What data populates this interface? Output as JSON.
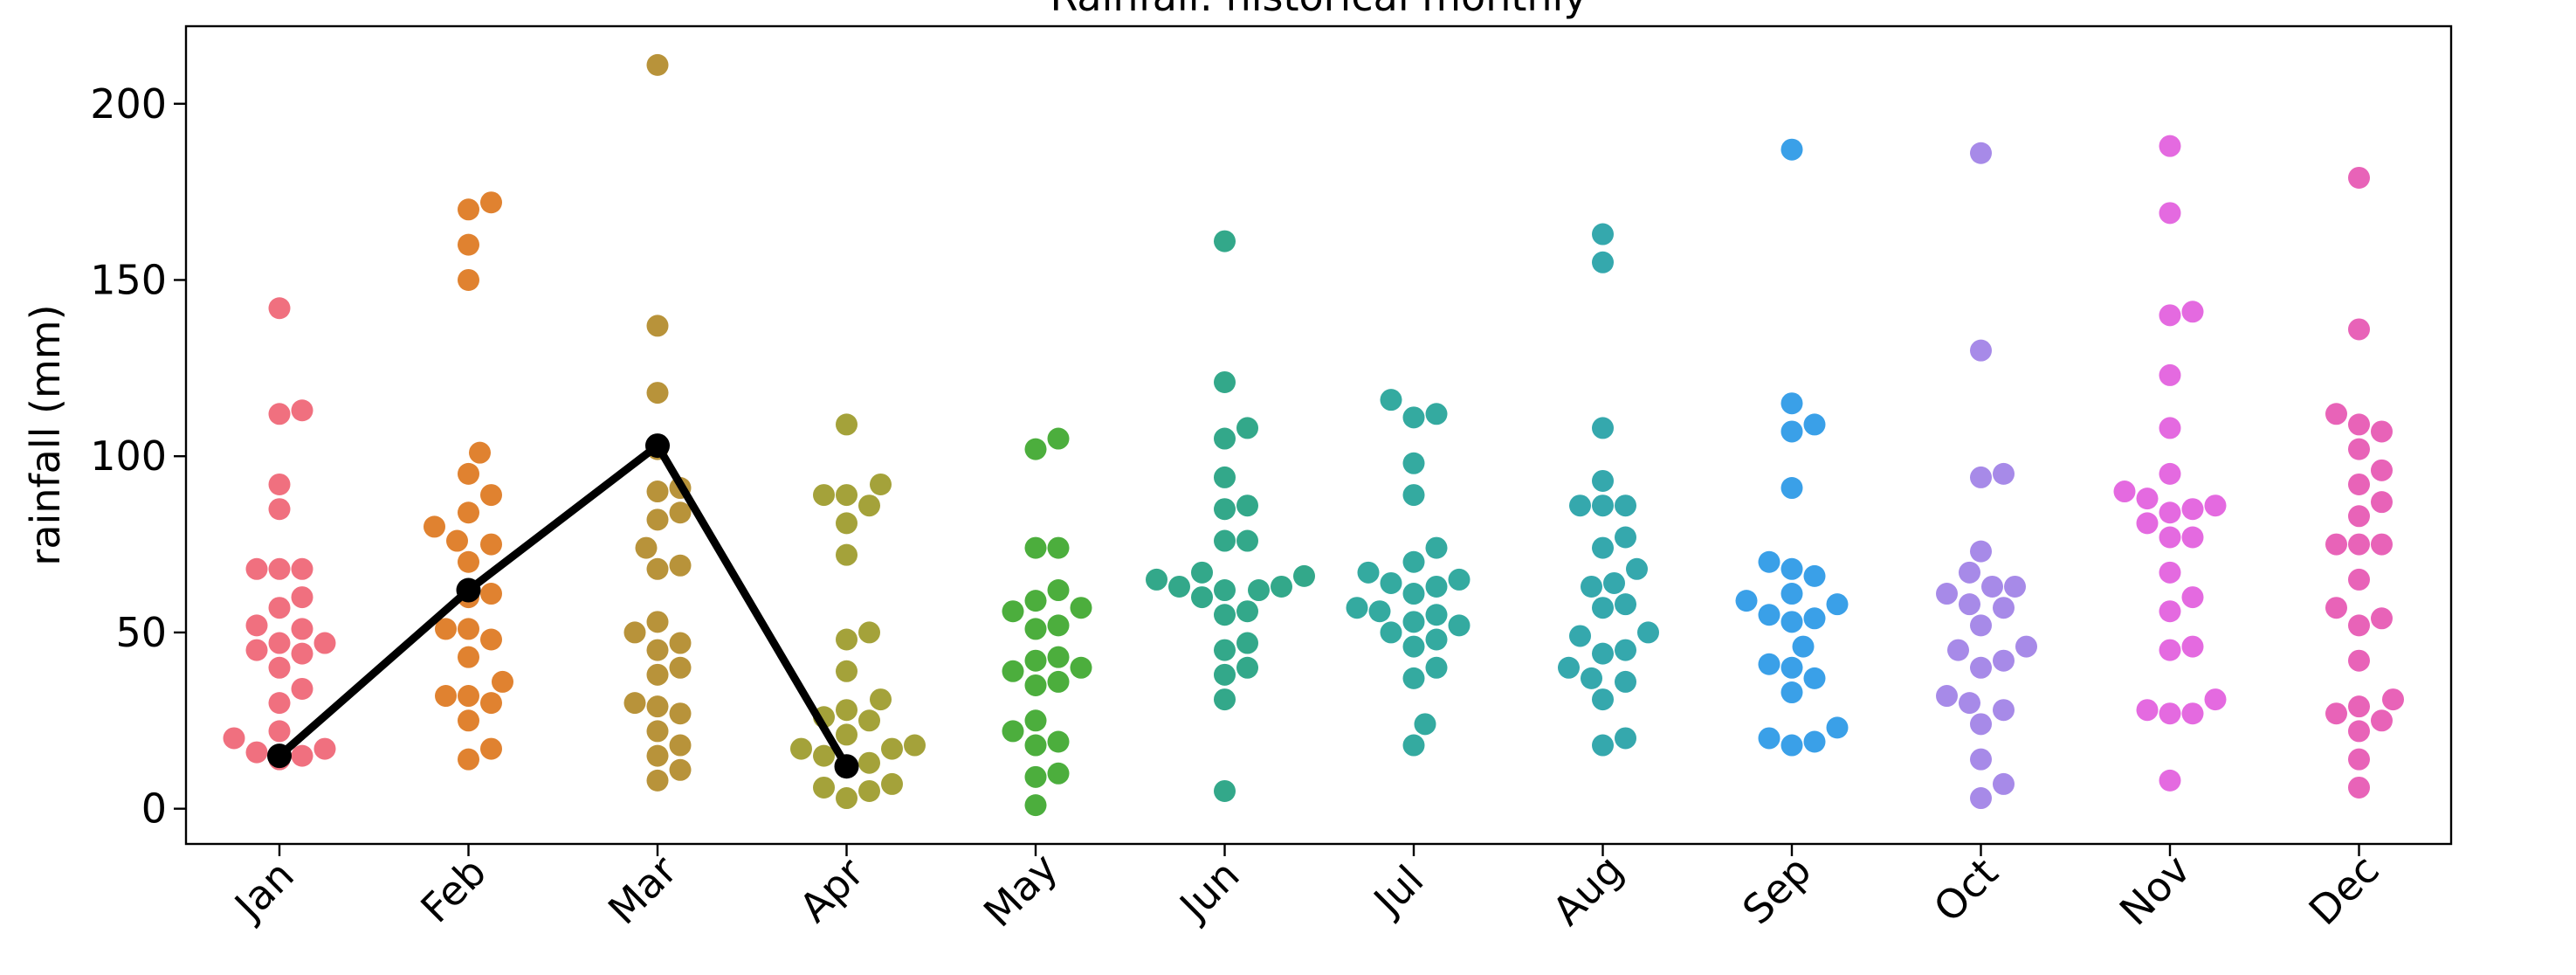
{
  "chart_data": {
    "type": "scatter",
    "title": "Rainfall: historical monthly",
    "xlabel": "",
    "ylabel": "rainfall (mm)",
    "ylim": [
      -10,
      222
    ],
    "yticks": [
      0,
      50,
      100,
      150,
      200
    ],
    "categories": [
      "Jan",
      "Feb",
      "Mar",
      "Apr",
      "May",
      "Jun",
      "Jul",
      "Aug",
      "Sep",
      "Oct",
      "Nov",
      "Dec"
    ],
    "series": [
      {
        "kind": "swarm",
        "colors": [
          "#f0707f",
          "#e08230",
          "#b8933a",
          "#a4a23a",
          "#4cae3d",
          "#33a88a",
          "#34aaa0",
          "#35a8ad",
          "#3aa0e8",
          "#a78ae8",
          "#e46ae0",
          "#e863b8"
        ],
        "values": [
          [
            142,
            113,
            112,
            92,
            85,
            68,
            68,
            68,
            60,
            57,
            51,
            52,
            47,
            47,
            45,
            44,
            40,
            34,
            30,
            22,
            20,
            17,
            16,
            15,
            14
          ],
          [
            172,
            170,
            160,
            150,
            101,
            95,
            89,
            84,
            80,
            76,
            75,
            70,
            61,
            60,
            51,
            51,
            48,
            43,
            36,
            32,
            32,
            30,
            25,
            17,
            14
          ],
          [
            211,
            137,
            118,
            91,
            90,
            84,
            82,
            74,
            69,
            68,
            53,
            50,
            47,
            45,
            40,
            38,
            30,
            29,
            27,
            22,
            18,
            15,
            11,
            8,
            102
          ],
          [
            109,
            92,
            89,
            89,
            86,
            81,
            72,
            50,
            48,
            39,
            31,
            28,
            26,
            25,
            21,
            18,
            17,
            17,
            15,
            13,
            12,
            7,
            6,
            5,
            3
          ],
          [
            105,
            102,
            74,
            74,
            62,
            59,
            57,
            56,
            52,
            51,
            43,
            42,
            40,
            39,
            36,
            35,
            25,
            22,
            19,
            18,
            10,
            9,
            1
          ],
          [
            161,
            121,
            108,
            105,
            94,
            86,
            85,
            76,
            76,
            67,
            66,
            65,
            63,
            63,
            62,
            62,
            60,
            56,
            55,
            47,
            45,
            40,
            38,
            31,
            5
          ],
          [
            116,
            112,
            111,
            98,
            89,
            74,
            70,
            67,
            65,
            64,
            63,
            61,
            57,
            56,
            55,
            53,
            52,
            50,
            48,
            46,
            40,
            37,
            24,
            18
          ],
          [
            163,
            155,
            108,
            93,
            86,
            86,
            86,
            77,
            74,
            68,
            64,
            63,
            58,
            57,
            50,
            49,
            45,
            44,
            40,
            37,
            36,
            31,
            20,
            18
          ],
          [
            187,
            115,
            109,
            107,
            91,
            70,
            68,
            66,
            61,
            59,
            58,
            55,
            54,
            53,
            46,
            41,
            40,
            37,
            33,
            23,
            20,
            19,
            18
          ],
          [
            186,
            130,
            95,
            94,
            73,
            67,
            63,
            63,
            61,
            58,
            57,
            52,
            46,
            45,
            42,
            40,
            32,
            30,
            28,
            24,
            14,
            7,
            3
          ],
          [
            188,
            169,
            141,
            140,
            123,
            108,
            95,
            90,
            88,
            86,
            85,
            84,
            81,
            77,
            77,
            67,
            60,
            56,
            46,
            45,
            31,
            28,
            27,
            27,
            8
          ],
          [
            179,
            136,
            112,
            109,
            107,
            102,
            96,
            92,
            87,
            83,
            75,
            75,
            75,
            65,
            57,
            54,
            52,
            42,
            31,
            29,
            27,
            25,
            22,
            14,
            6
          ]
        ]
      },
      {
        "kind": "line",
        "color": "#000000",
        "x": [
          "Jan",
          "Feb",
          "Mar",
          "Apr"
        ],
        "y": [
          15,
          62,
          103,
          12
        ]
      }
    ],
    "grid": false,
    "legend": "none"
  }
}
